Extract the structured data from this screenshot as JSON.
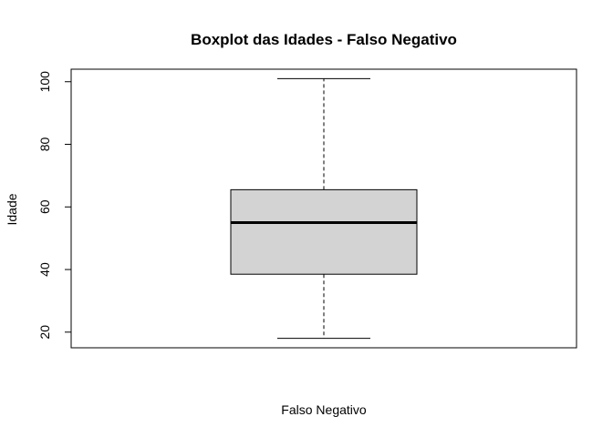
{
  "chart_data": {
    "type": "boxplot",
    "title": "Boxplot das Idades - Falso Negativo",
    "xlabel": "Falso Negativo",
    "ylabel": "Idade",
    "ylim": [
      15,
      104
    ],
    "yticks": [
      20,
      40,
      60,
      80,
      100
    ],
    "ytick_labels": [
      "20",
      "40",
      "60",
      "80",
      "100"
    ],
    "grid": false,
    "box": {
      "min": 18,
      "q1": 38.5,
      "median": 55,
      "q3": 65.5,
      "max": 101
    },
    "colors": {
      "box_fill": "#d3d3d3",
      "stroke": "#000000"
    }
  }
}
